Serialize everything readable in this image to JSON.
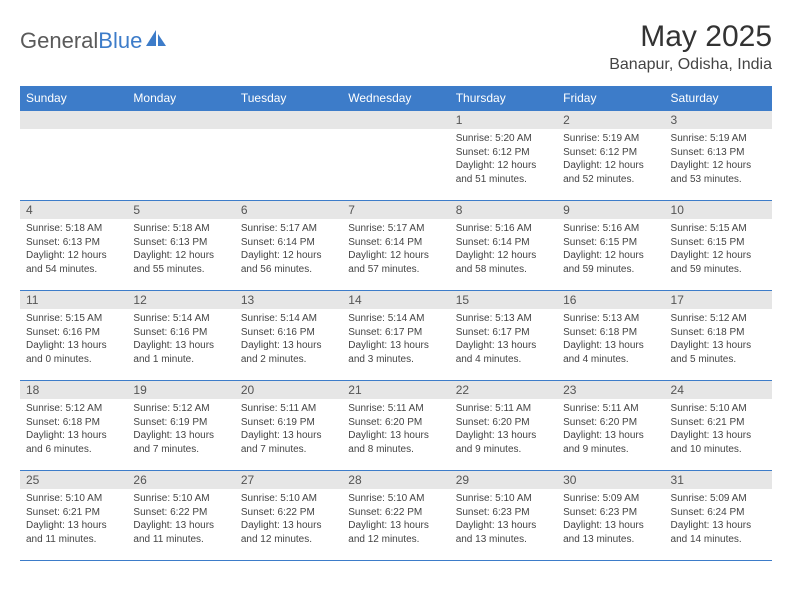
{
  "logo": {
    "text1": "General",
    "text2": "Blue"
  },
  "title": "May 2025",
  "location": "Banapur, Odisha, India",
  "colors": {
    "header_bg": "#3d7cc9",
    "daynum_bg": "#e6e6e6",
    "border": "#3d7cc9"
  },
  "weekdays": [
    "Sunday",
    "Monday",
    "Tuesday",
    "Wednesday",
    "Thursday",
    "Friday",
    "Saturday"
  ],
  "weeks": [
    [
      null,
      null,
      null,
      null,
      {
        "n": "1",
        "sr": "5:20 AM",
        "ss": "6:12 PM",
        "dl": "12 hours and 51 minutes."
      },
      {
        "n": "2",
        "sr": "5:19 AM",
        "ss": "6:12 PM",
        "dl": "12 hours and 52 minutes."
      },
      {
        "n": "3",
        "sr": "5:19 AM",
        "ss": "6:13 PM",
        "dl": "12 hours and 53 minutes."
      }
    ],
    [
      {
        "n": "4",
        "sr": "5:18 AM",
        "ss": "6:13 PM",
        "dl": "12 hours and 54 minutes."
      },
      {
        "n": "5",
        "sr": "5:18 AM",
        "ss": "6:13 PM",
        "dl": "12 hours and 55 minutes."
      },
      {
        "n": "6",
        "sr": "5:17 AM",
        "ss": "6:14 PM",
        "dl": "12 hours and 56 minutes."
      },
      {
        "n": "7",
        "sr": "5:17 AM",
        "ss": "6:14 PM",
        "dl": "12 hours and 57 minutes."
      },
      {
        "n": "8",
        "sr": "5:16 AM",
        "ss": "6:14 PM",
        "dl": "12 hours and 58 minutes."
      },
      {
        "n": "9",
        "sr": "5:16 AM",
        "ss": "6:15 PM",
        "dl": "12 hours and 59 minutes."
      },
      {
        "n": "10",
        "sr": "5:15 AM",
        "ss": "6:15 PM",
        "dl": "12 hours and 59 minutes."
      }
    ],
    [
      {
        "n": "11",
        "sr": "5:15 AM",
        "ss": "6:16 PM",
        "dl": "13 hours and 0 minutes."
      },
      {
        "n": "12",
        "sr": "5:14 AM",
        "ss": "6:16 PM",
        "dl": "13 hours and 1 minute."
      },
      {
        "n": "13",
        "sr": "5:14 AM",
        "ss": "6:16 PM",
        "dl": "13 hours and 2 minutes."
      },
      {
        "n": "14",
        "sr": "5:14 AM",
        "ss": "6:17 PM",
        "dl": "13 hours and 3 minutes."
      },
      {
        "n": "15",
        "sr": "5:13 AM",
        "ss": "6:17 PM",
        "dl": "13 hours and 4 minutes."
      },
      {
        "n": "16",
        "sr": "5:13 AM",
        "ss": "6:18 PM",
        "dl": "13 hours and 4 minutes."
      },
      {
        "n": "17",
        "sr": "5:12 AM",
        "ss": "6:18 PM",
        "dl": "13 hours and 5 minutes."
      }
    ],
    [
      {
        "n": "18",
        "sr": "5:12 AM",
        "ss": "6:18 PM",
        "dl": "13 hours and 6 minutes."
      },
      {
        "n": "19",
        "sr": "5:12 AM",
        "ss": "6:19 PM",
        "dl": "13 hours and 7 minutes."
      },
      {
        "n": "20",
        "sr": "5:11 AM",
        "ss": "6:19 PM",
        "dl": "13 hours and 7 minutes."
      },
      {
        "n": "21",
        "sr": "5:11 AM",
        "ss": "6:20 PM",
        "dl": "13 hours and 8 minutes."
      },
      {
        "n": "22",
        "sr": "5:11 AM",
        "ss": "6:20 PM",
        "dl": "13 hours and 9 minutes."
      },
      {
        "n": "23",
        "sr": "5:11 AM",
        "ss": "6:20 PM",
        "dl": "13 hours and 9 minutes."
      },
      {
        "n": "24",
        "sr": "5:10 AM",
        "ss": "6:21 PM",
        "dl": "13 hours and 10 minutes."
      }
    ],
    [
      {
        "n": "25",
        "sr": "5:10 AM",
        "ss": "6:21 PM",
        "dl": "13 hours and 11 minutes."
      },
      {
        "n": "26",
        "sr": "5:10 AM",
        "ss": "6:22 PM",
        "dl": "13 hours and 11 minutes."
      },
      {
        "n": "27",
        "sr": "5:10 AM",
        "ss": "6:22 PM",
        "dl": "13 hours and 12 minutes."
      },
      {
        "n": "28",
        "sr": "5:10 AM",
        "ss": "6:22 PM",
        "dl": "13 hours and 12 minutes."
      },
      {
        "n": "29",
        "sr": "5:10 AM",
        "ss": "6:23 PM",
        "dl": "13 hours and 13 minutes."
      },
      {
        "n": "30",
        "sr": "5:09 AM",
        "ss": "6:23 PM",
        "dl": "13 hours and 13 minutes."
      },
      {
        "n": "31",
        "sr": "5:09 AM",
        "ss": "6:24 PM",
        "dl": "13 hours and 14 minutes."
      }
    ]
  ],
  "labels": {
    "sunrise": "Sunrise: ",
    "sunset": "Sunset: ",
    "daylight": "Daylight: "
  }
}
